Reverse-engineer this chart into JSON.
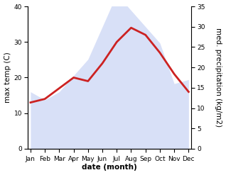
{
  "months": [
    "Jan",
    "Feb",
    "Mar",
    "Apr",
    "May",
    "Jun",
    "Jul",
    "Aug",
    "Sep",
    "Oct",
    "Nov",
    "Dec"
  ],
  "month_positions": [
    0,
    1,
    2,
    3,
    4,
    5,
    6,
    7,
    8,
    9,
    10,
    11
  ],
  "temperature": [
    13,
    14,
    17,
    20,
    19,
    24,
    30,
    34,
    32,
    27,
    21,
    16
  ],
  "precipitation": [
    14,
    12,
    14,
    18,
    22,
    30,
    38,
    34,
    30,
    26,
    16,
    17
  ],
  "temp_color": "#cc2222",
  "precip_color": "#aabbee",
  "temp_ylim": [
    0,
    40
  ],
  "precip_ylim": [
    0,
    35
  ],
  "temp_yticks": [
    0,
    10,
    20,
    30,
    40
  ],
  "precip_yticks": [
    0,
    5,
    10,
    15,
    20,
    25,
    30,
    35
  ],
  "xlabel": "date (month)",
  "ylabel_left": "max temp (C)",
  "ylabel_right": "med. precipitation (kg/m2)",
  "background_color": "#ffffff",
  "line_width": 2.0,
  "font_size_label": 7.5,
  "font_size_tick": 6.5
}
